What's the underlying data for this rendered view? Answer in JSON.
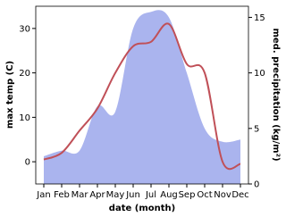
{
  "chart_data": {
    "type": "line-area",
    "categories": [
      "Jan",
      "Feb",
      "Mar",
      "Apr",
      "May",
      "Jun",
      "Jul",
      "Aug",
      "Sep",
      "Oct",
      "Nov",
      "Dec"
    ],
    "x_label": "date (month)",
    "y_label": "max temp (C)",
    "y2_label": "med. precipitation (kg/m²)",
    "ylim": [
      -5,
      35
    ],
    "yticks": [
      0,
      10,
      20,
      30
    ],
    "y2lim": [
      0,
      16
    ],
    "y2ticks": [
      0,
      5,
      10,
      15
    ],
    "series": [
      {
        "name": "precipitation",
        "kind": "area",
        "axis": "y2",
        "color": "#aab4ee",
        "values": [
          2.5,
          3,
          3,
          7,
          6.5,
          14,
          15.5,
          15,
          10,
          5,
          3.8,
          4
        ]
      },
      {
        "name": "max temp",
        "kind": "line",
        "axis": "y",
        "color": "#c05058",
        "values": [
          0.5,
          2,
          7,
          12,
          20,
          26,
          27,
          31,
          22,
          20,
          0,
          -0.5
        ]
      }
    ]
  }
}
